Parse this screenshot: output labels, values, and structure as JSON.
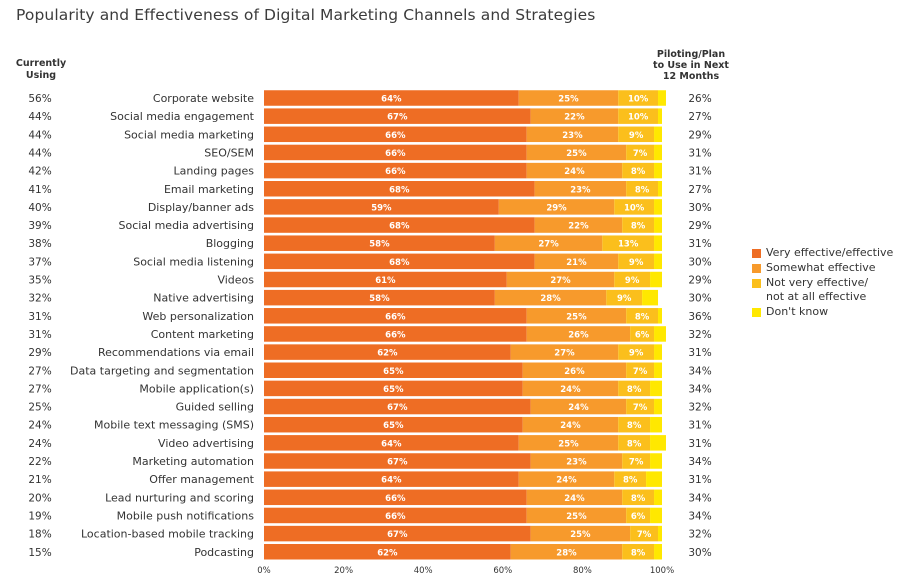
{
  "colors": {
    "very_effective": "#EE6D24",
    "somewhat_effective": "#F79A2C",
    "not_very_effective": "#FBBF1C",
    "dont_know": "#FFE800",
    "text": "#333333",
    "bar_label": "#ffffff"
  },
  "chart_data": {
    "type": "bar",
    "orientation": "horizontal",
    "stacked": true,
    "title": "Popularity and Effectiveness of Digital Marketing Channels and Strategies",
    "left_column_header": "Currently\nUsing",
    "right_column_header": "Piloting/Plan\nto Use in Next\n12 Months",
    "categories": [
      "Corporate website",
      "Social media engagement",
      "Social media marketing",
      "SEO/SEM",
      "Landing pages",
      "Email marketing",
      "Display/banner ads",
      "Social media advertising",
      "Blogging",
      "Social media listening",
      "Videos",
      "Native advertising",
      "Web personalization",
      "Content marketing",
      "Recommendations via email",
      "Data targeting and segmentation",
      "Mobile application(s)",
      "Guided selling",
      "Mobile text messaging (SMS)",
      "Video advertising",
      "Marketing automation",
      "Offer management",
      "Lead nurturing and scoring",
      "Mobile push notifications",
      "Location-based mobile tracking",
      "Podcasting"
    ],
    "currently_using": [
      "56%",
      "44%",
      "44%",
      "44%",
      "42%",
      "41%",
      "40%",
      "39%",
      "38%",
      "37%",
      "35%",
      "32%",
      "31%",
      "31%",
      "29%",
      "27%",
      "27%",
      "25%",
      "24%",
      "24%",
      "22%",
      "21%",
      "20%",
      "19%",
      "18%",
      "15%"
    ],
    "piloting_plan": [
      "26%",
      "27%",
      "29%",
      "31%",
      "31%",
      "27%",
      "30%",
      "29%",
      "31%",
      "30%",
      "29%",
      "30%",
      "36%",
      "32%",
      "31%",
      "34%",
      "34%",
      "32%",
      "31%",
      "31%",
      "34%",
      "31%",
      "34%",
      "34%",
      "32%",
      "30%"
    ],
    "series": [
      {
        "name": "Very effective/effective",
        "color_key": "very_effective",
        "values": [
          64,
          67,
          66,
          66,
          66,
          68,
          59,
          68,
          58,
          68,
          61,
          58,
          66,
          66,
          62,
          65,
          65,
          67,
          65,
          64,
          67,
          64,
          66,
          66,
          67,
          62
        ]
      },
      {
        "name": "Somewhat effective",
        "color_key": "somewhat_effective",
        "values": [
          25,
          22,
          23,
          25,
          24,
          23,
          29,
          22,
          27,
          21,
          27,
          28,
          25,
          26,
          27,
          26,
          24,
          24,
          24,
          25,
          23,
          24,
          24,
          25,
          25,
          28
        ]
      },
      {
        "name": "Not very effective/\nnot at all effective",
        "color_key": "not_very_effective",
        "values": [
          10,
          10,
          9,
          7,
          8,
          8,
          10,
          8,
          13,
          9,
          9,
          9,
          8,
          6,
          9,
          7,
          8,
          7,
          8,
          8,
          7,
          8,
          8,
          6,
          7,
          8
        ]
      },
      {
        "name": "Don't know",
        "color_key": "dont_know",
        "values": [
          2,
          1,
          2,
          2,
          2,
          1,
          2,
          2,
          2,
          2,
          3,
          4,
          1,
          3,
          2,
          2,
          3,
          2,
          3,
          4,
          3,
          4,
          2,
          3,
          1,
          2
        ]
      }
    ],
    "x_ticks": [
      "0%",
      "20%",
      "40%",
      "60%",
      "80%",
      "100%"
    ],
    "xlim": [
      0,
      100
    ],
    "legend_position": "right"
  }
}
